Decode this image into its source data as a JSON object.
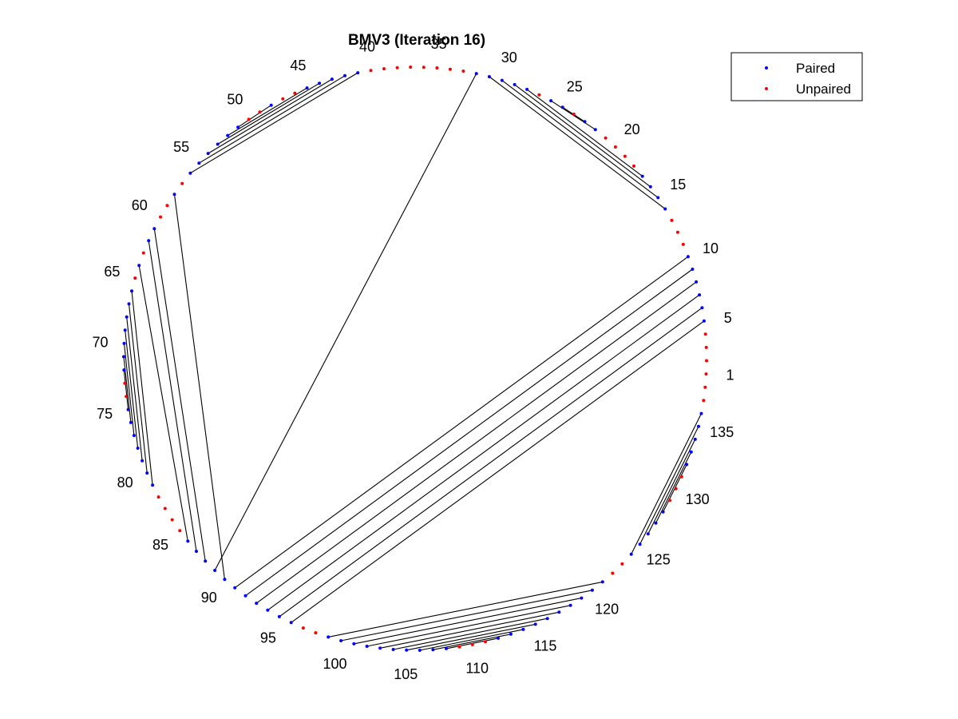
{
  "chart_data": {
    "type": "arc-diagram-circular",
    "title": "BMV3 (Iteration 16)",
    "n_positions": 138,
    "start_angle_deg": 357,
    "direction": "counterclockwise",
    "tick_labels": [
      1,
      5,
      10,
      15,
      20,
      25,
      30,
      35,
      40,
      45,
      50,
      55,
      60,
      65,
      70,
      75,
      80,
      85,
      90,
      95,
      100,
      105,
      110,
      115,
      120,
      125,
      130,
      135
    ],
    "series": [
      {
        "name": "Paired",
        "color": "#0000ff",
        "marker": "point"
      },
      {
        "name": "Unpaired",
        "color": "#ff0000",
        "marker": "point"
      }
    ],
    "legend_position": "top-right",
    "pairs": [
      [
        5,
        96
      ],
      [
        6,
        95
      ],
      [
        7,
        94
      ],
      [
        8,
        93
      ],
      [
        9,
        92
      ],
      [
        10,
        91
      ],
      [
        14,
        31
      ],
      [
        15,
        30
      ],
      [
        16,
        29
      ],
      [
        17,
        28
      ],
      [
        22,
        26
      ],
      [
        23,
        25
      ],
      [
        32,
        89
      ],
      [
        41,
        56
      ],
      [
        42,
        55
      ],
      [
        43,
        54
      ],
      [
        44,
        53
      ],
      [
        45,
        52
      ],
      [
        48,
        51
      ],
      [
        58,
        90
      ],
      [
        61,
        88
      ],
      [
        62,
        87
      ],
      [
        64,
        86
      ],
      [
        66,
        81
      ],
      [
        67,
        80
      ],
      [
        68,
        79
      ],
      [
        69,
        78
      ],
      [
        70,
        77
      ],
      [
        71,
        76
      ],
      [
        72,
        75
      ],
      [
        99,
        121
      ],
      [
        100,
        120
      ],
      [
        101,
        119
      ],
      [
        102,
        118
      ],
      [
        103,
        117
      ],
      [
        104,
        116
      ],
      [
        105,
        115
      ],
      [
        106,
        114
      ],
      [
        107,
        113
      ],
      [
        108,
        112
      ],
      [
        124,
        136
      ],
      [
        125,
        135
      ],
      [
        126,
        134
      ],
      [
        127,
        133
      ],
      [
        128,
        132
      ]
    ],
    "grid": false
  }
}
